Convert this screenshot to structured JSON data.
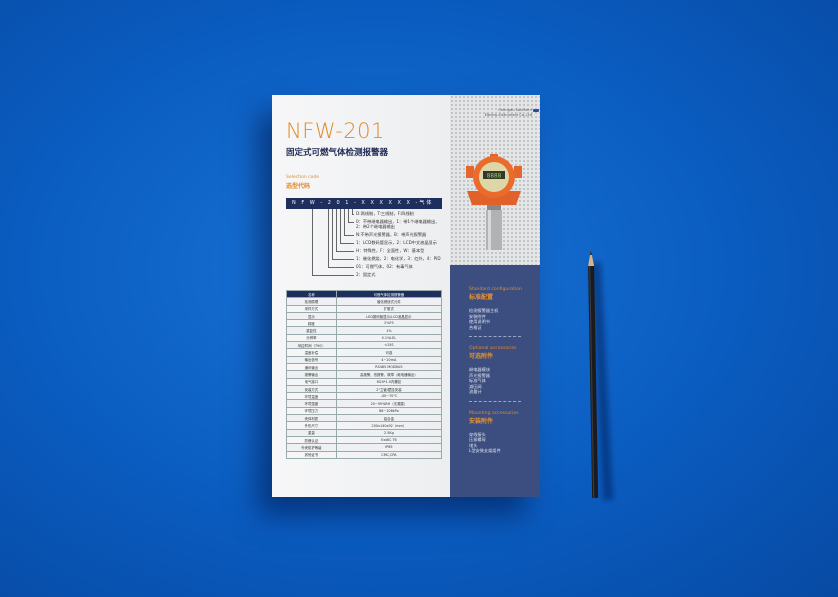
{
  "brochure": {
    "model": "NFW-201",
    "product_name": "固定式可燃气体检测报警器",
    "selection_code_en": "Selection code",
    "selection_code_cn": "选型代码",
    "code": "N F W - 2 0 1 - X X X X X X -气体",
    "code_options": [
      "D:两线制，T:三线制，F:四线制",
      "0：不带继电器输出，1：带1个继电器输出，",
      "2：带2个继电器输出",
      "N:不带声光报警器，B：带声光报警器",
      "1：LCD数码管显示，2：LCD中文液晶显示",
      "H：特殊性，F：全面性，W：基本型",
      "1：催化燃烧，2：电化学，3：红外，4：PID",
      "01：可燃气体，02：有毒气体",
      "2：固定式"
    ],
    "spec_table": {
      "header": [
        "名称",
        "可燃气体检测报警器"
      ],
      "rows": [
        [
          "检测原理",
          "催化燃烧式元件"
        ],
        [
          "采样方式",
          "扩散式"
        ],
        [
          "显示",
          "LED数码管显示/LCD液晶显示"
        ],
        [
          "精度",
          "2%FS"
        ],
        [
          "重复性",
          "1%"
        ],
        [
          "分辨率",
          "0.1%LEL"
        ],
        [
          "响应时间（T90）",
          "<15S"
        ],
        [
          "温度补偿",
          "可选"
        ],
        [
          "输出信号",
          "4~20mA"
        ],
        [
          "通讯输出",
          "RS485 MODBUS"
        ],
        [
          "报警输出",
          "高报警、低报警、故障（继电器输出）"
        ],
        [
          "电气接口",
          "M20*1.5内螺纹"
        ],
        [
          "安装方式",
          "2\"立管/壁挂安装"
        ],
        [
          "环境温度",
          "-40~70℃"
        ],
        [
          "环境湿度",
          "20~95%RH（无凝露）"
        ],
        [
          "环境压力",
          "86~106kPa"
        ],
        [
          "壳体材质",
          "铝合金"
        ],
        [
          "外形尺寸",
          "200x140x92（mm）"
        ],
        [
          "重量",
          "2.5Kg"
        ],
        [
          "防爆认证",
          "ExdⅡC T6"
        ],
        [
          "外壳防护等级",
          "IP65"
        ],
        [
          "其他证书",
          "CMC,CPA"
        ]
      ]
    },
    "company": [
      "Chengdu Southern",
      "Electro-Instrument Co.,Ltd"
    ],
    "device_display": "8888",
    "sections": [
      {
        "en": "Standard configuration",
        "cn": "标准配置",
        "items": [
          "检测报警器主机",
          "安装附件",
          "使用说明书",
          "合格证"
        ]
      },
      {
        "en": "Optional accessories",
        "cn": "可选附件",
        "items": [
          "继电器模块",
          "声光报警器",
          "标准气体",
          "减压阀",
          "流量计"
        ]
      },
      {
        "en": "Mounting accessories",
        "cn": "安装附件",
        "items": [
          "穿线接头",
          "压紧螺母",
          "堵头",
          "L型安装支架组件"
        ]
      }
    ]
  },
  "colors": {
    "background": "#0a5cc0",
    "accent": "#e08a2a",
    "navy": "#1e2f5e",
    "panel": "#3c4e80"
  }
}
